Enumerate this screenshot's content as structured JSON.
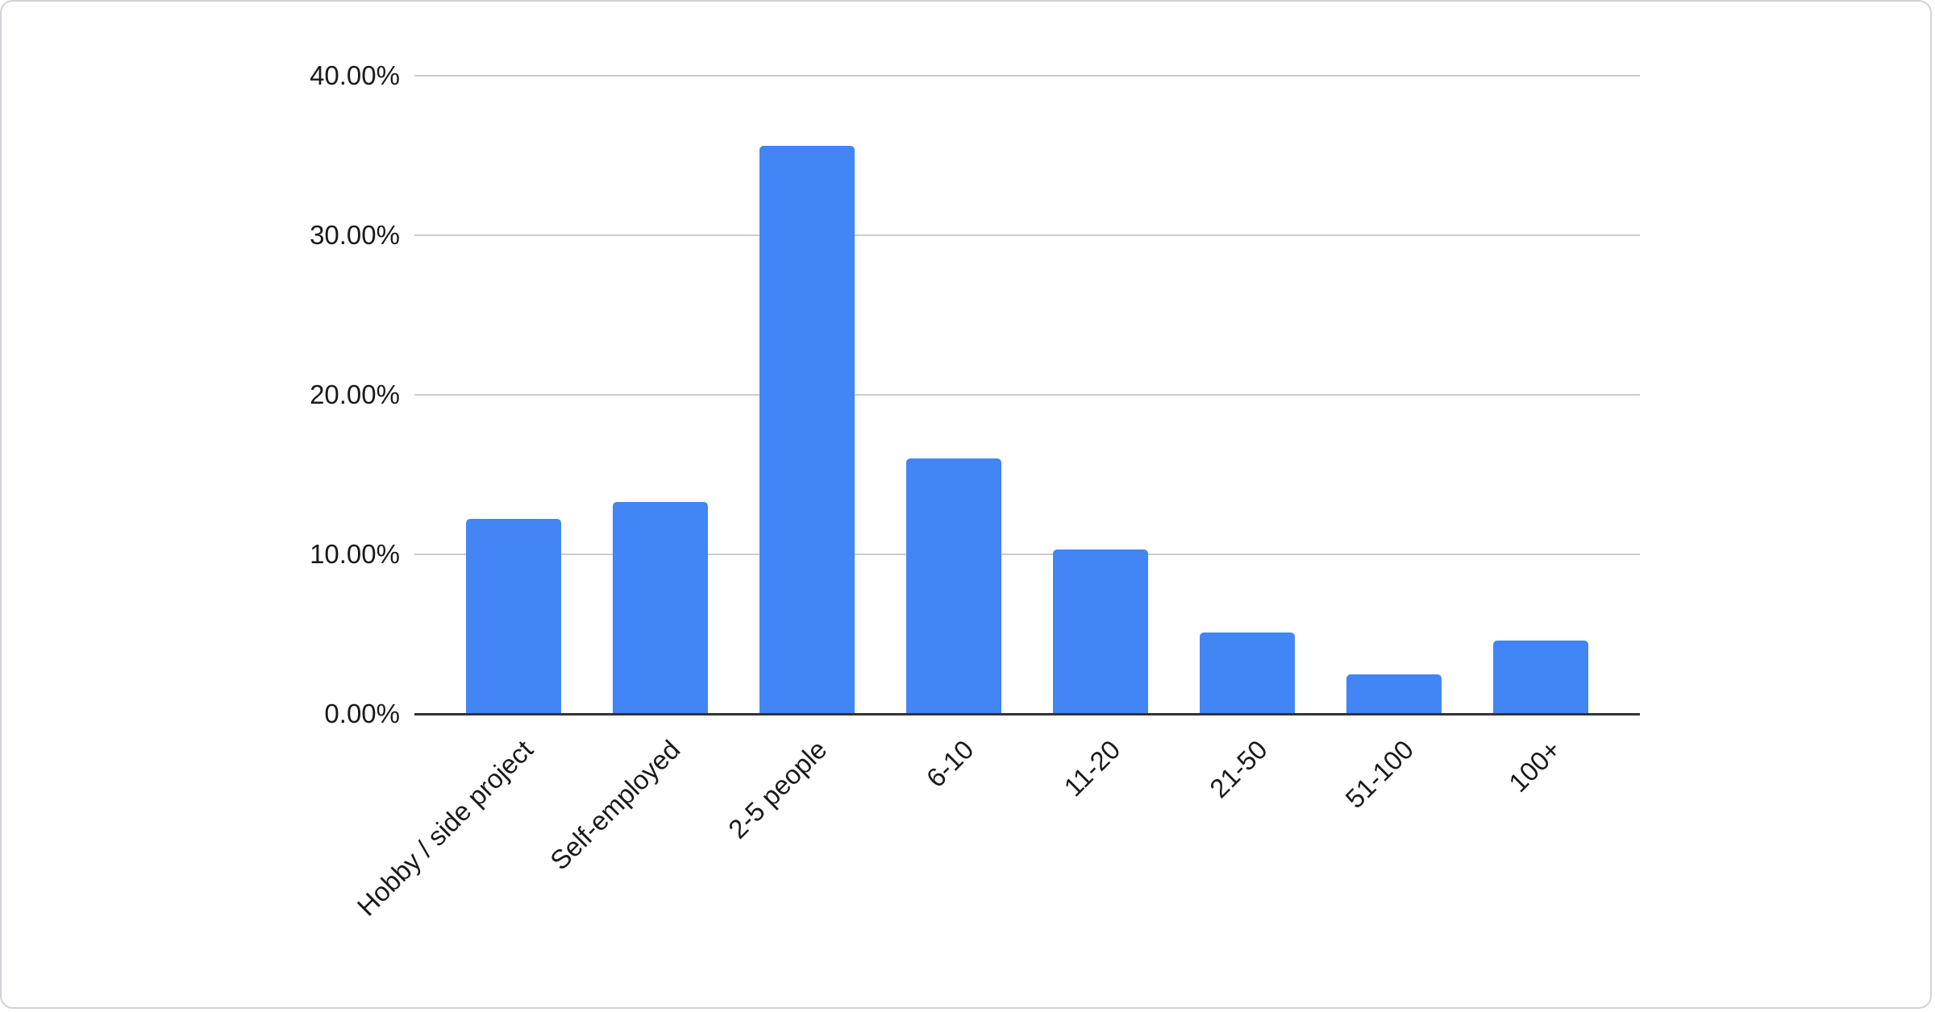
{
  "chart_data": {
    "type": "bar",
    "title": "",
    "xlabel": "",
    "ylabel": "",
    "categories": [
      "Hobby / side project",
      "Self-employed",
      "2-5 people",
      "6-10",
      "11-20",
      "21-50",
      "51-100",
      "100+"
    ],
    "values": [
      12.2,
      13.3,
      35.6,
      16.0,
      10.3,
      5.1,
      2.5,
      4.6
    ],
    "unit": "%",
    "ylim": [
      0,
      40
    ],
    "ytick_values": [
      0,
      10,
      20,
      30,
      40
    ],
    "ytick_labels": [
      "0.00%",
      "10.00%",
      "20.00%",
      "30.00%",
      "40.00%"
    ],
    "grid": true,
    "legend": "none",
    "x_label_rotation_deg": -45,
    "colors": {
      "bar": "#4285f4",
      "gridline": "#cccccc",
      "axis_line": "#333333",
      "label_text": "#1a1a1a",
      "card_border": "#d0d3d8",
      "background": "#ffffff"
    }
  }
}
